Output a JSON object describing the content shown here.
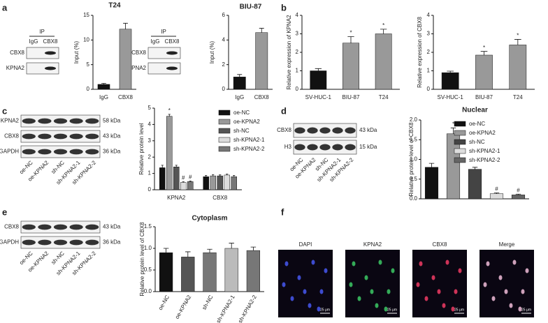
{
  "panels": [
    "a",
    "b",
    "c",
    "d",
    "e",
    "f"
  ],
  "blots": {
    "a1": {
      "header": "IP",
      "lanes": [
        "IgG",
        "CBX8"
      ],
      "rows": [
        "CBX8",
        "KPNA2"
      ]
    },
    "a2": {
      "header": "IP",
      "lanes": [
        "IgG",
        "CBX8"
      ],
      "rows": [
        "CBX8",
        "KPNA2"
      ]
    },
    "c": {
      "rows": [
        "KPNA2",
        "CBX8",
        "GAPDH"
      ],
      "sizes": [
        "58 kDa",
        "43 kDa",
        "36 kDa"
      ],
      "lanes": [
        "oe-NC",
        "oe-KPNA2",
        "sh-NC",
        "sh-KPNA2-1",
        "sh-KPNA2-2"
      ]
    },
    "d": {
      "rows": [
        "CBX8",
        "H3"
      ],
      "sizes": [
        "43 kDa",
        "15 kDa"
      ],
      "lanes": [
        "oe-NC",
        "oe-KPNA2",
        "sh-NC",
        "sh-KPNA2-1",
        "sh-KPNA2-2"
      ]
    },
    "e": {
      "rows": [
        "CBX8",
        "GAPDH"
      ],
      "sizes": [
        "43 kDa",
        "36 kDa"
      ],
      "lanes": [
        "oe-NC",
        "oe-KPNA2",
        "sh-NC",
        "sh-KPNA2-1",
        "sh-KPNA2-2"
      ]
    }
  },
  "images": {
    "labels": [
      "DAPI",
      "KPNA2",
      "CBX8",
      "Merge"
    ],
    "scale_bar": "25 μm"
  },
  "chart_data": [
    {
      "type": "bar",
      "title": "T24",
      "y_label": "Input (%)",
      "categories": [
        "IgG",
        "CBX8"
      ],
      "values": [
        1,
        12.2
      ],
      "errors": [
        0.2,
        1.2
      ],
      "colors": [
        "#111111",
        "#999999"
      ],
      "ylim": [
        0,
        15
      ],
      "yticks": [
        0,
        5,
        10,
        15
      ]
    },
    {
      "type": "bar",
      "title": "BIU-87",
      "y_label": "Input (%)",
      "categories": [
        "IgG",
        "CBX8"
      ],
      "values": [
        1,
        4.6
      ],
      "errors": [
        0.2,
        0.35
      ],
      "colors": [
        "#111111",
        "#999999"
      ],
      "ylim": [
        0,
        6
      ],
      "yticks": [
        0,
        2,
        4,
        6
      ]
    },
    {
      "type": "bar",
      "y_label": "Relative expression of KPNA2",
      "categories": [
        "SV-HUC-1",
        "BIU-87",
        "T24"
      ],
      "values": [
        1,
        2.5,
        3.0
      ],
      "errors": [
        0.12,
        0.35,
        0.25
      ],
      "markers": [
        null,
        "*",
        "*"
      ],
      "colors": [
        "#111111",
        "#999999",
        "#999999"
      ],
      "ylim": [
        0,
        4
      ],
      "yticks": [
        0,
        1,
        2,
        3,
        4
      ]
    },
    {
      "type": "bar",
      "y_label": "Relative expression of CBX8",
      "categories": [
        "SV-HUC-1",
        "BIU-87",
        "T24"
      ],
      "values": [
        0.9,
        1.85,
        2.4
      ],
      "errors": [
        0.08,
        0.2,
        0.3
      ],
      "markers": [
        null,
        "*",
        "*"
      ],
      "colors": [
        "#111111",
        "#999999",
        "#999999"
      ],
      "ylim": [
        0,
        4
      ],
      "yticks": [
        0,
        1,
        2,
        3,
        4
      ]
    },
    {
      "type": "bar",
      "y_label": "Relative protein level",
      "categories": [
        "KPNA2",
        "CBX8"
      ],
      "ylim": [
        0,
        5
      ],
      "yticks": [
        0,
        1,
        2,
        3,
        4,
        5
      ],
      "series": [
        {
          "name": "oe-NC",
          "color": "#111111",
          "values": [
            1.35,
            0.8
          ],
          "errors": [
            0.15,
            0.08
          ],
          "markers": [
            null,
            null
          ]
        },
        {
          "name": "oe-KPNA2",
          "color": "#999999",
          "values": [
            4.5,
            0.85
          ],
          "errors": [
            0.12,
            0.08
          ],
          "markers": [
            "*",
            null
          ]
        },
        {
          "name": "sh-NC",
          "color": "#555555",
          "values": [
            1.4,
            0.85
          ],
          "errors": [
            0.1,
            0.06
          ],
          "markers": [
            null,
            null
          ]
        },
        {
          "name": "sh-KPNA2-1",
          "color": "#dddddd",
          "values": [
            0.45,
            0.9
          ],
          "errors": [
            0.04,
            0.06
          ],
          "markers": [
            "#",
            null
          ]
        },
        {
          "name": "sh-KPNA2-2",
          "color": "#777777",
          "values": [
            0.5,
            0.8
          ],
          "errors": [
            0.04,
            0.08
          ],
          "markers": [
            "#",
            null
          ]
        }
      ]
    },
    {
      "type": "bar",
      "title": "Nuclear",
      "y_label": "Relative protein level of CBX8",
      "legend": [
        "oe-NC",
        "oe-KPNA2",
        "sh-NC",
        "sh-KPNA2-1",
        "sh-KPNA2-2"
      ],
      "values": [
        0.8,
        1.65,
        0.75,
        0.13,
        0.1
      ],
      "errors": [
        0.1,
        0.15,
        0.05,
        0.02,
        0.02
      ],
      "markers": [
        null,
        "*",
        null,
        "#",
        "#"
      ],
      "colors": [
        "#111111",
        "#999999",
        "#444444",
        "#dddddd",
        "#666666"
      ],
      "ylim": [
        0,
        2
      ],
      "yticks": [
        {
          "value": 0,
          "label": "0.0"
        },
        {
          "value": 0.5,
          "label": "0.5"
        },
        {
          "value": 1,
          "label": "1.0"
        },
        {
          "value": 1.5,
          "label": "1.5"
        },
        {
          "value": 2,
          "label": "2.0"
        }
      ]
    },
    {
      "type": "bar",
      "title": "Cytoplasm",
      "y_label": "Relative protein level of CBX8",
      "categories": [
        "oe-NC",
        "oe-KPNA2",
        "sh-NC",
        "sh-KPNA2-1",
        "sh-KPNA2-2"
      ],
      "values": [
        0.9,
        0.8,
        0.9,
        1.0,
        0.95
      ],
      "errors": [
        0.1,
        0.12,
        0.08,
        0.12,
        0.08
      ],
      "colors": [
        "#111111",
        "#555555",
        "#777777",
        "#bbbbbb",
        "#777777"
      ],
      "ylim": [
        0,
        1.5
      ],
      "yticks": [
        {
          "value": 0,
          "label": "0.0"
        },
        {
          "value": 0.5,
          "label": "0.5"
        },
        {
          "value": 1,
          "label": "1.0"
        },
        {
          "value": 1.5,
          "label": "1.5"
        }
      ]
    }
  ]
}
